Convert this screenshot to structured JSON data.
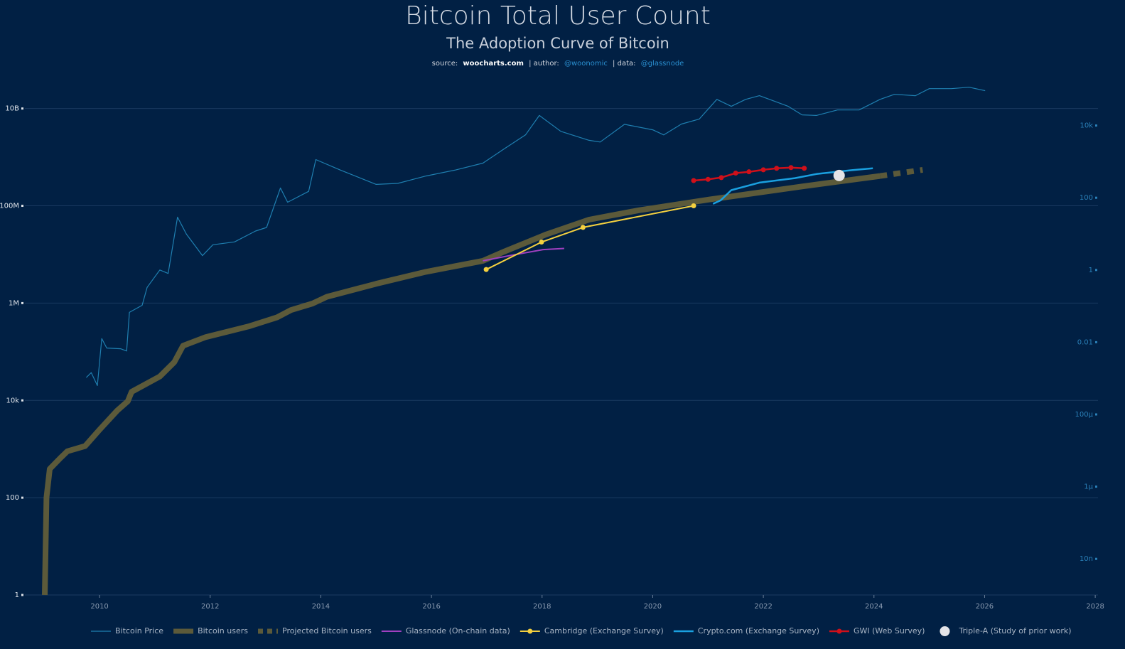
{
  "chart_data": {
    "type": "line",
    "title": "Bitcoin Total User Count",
    "subtitle": "The Adoption Curve of Bitcoin",
    "source": {
      "source_label": "source:",
      "site": "woocharts.com",
      "author_label": "| author:",
      "author": "@woonomic",
      "data_label": "| data:",
      "data": "@glassnode"
    },
    "xlim": [
      2008.65,
      2028.05
    ],
    "xticks": [
      2010,
      2012,
      2014,
      2016,
      2018,
      2020,
      2022,
      2024,
      2026,
      2028
    ],
    "ylim": [
      1,
      30000000000
    ],
    "yticks": [
      1,
      100,
      {
        "value": 10000,
        "label": "10k"
      },
      {
        "value": 1000000,
        "label": "1M"
      },
      {
        "value": 100000000,
        "label": "100M"
      },
      {
        "value": 10000000000,
        "label": "10B"
      }
    ],
    "y2lim": [
      1e-09,
      130000
    ],
    "y2ticks": [
      {
        "value": 1e-08,
        "label": "10n"
      },
      {
        "value": 1e-06,
        "label": "1μ"
      },
      {
        "value": 0.0001,
        "label": "100μ"
      },
      0.01,
      1,
      100,
      {
        "value": 10000,
        "label": "10k"
      }
    ],
    "log_scale": true,
    "grid": true,
    "legend": "bottom",
    "series": [
      {
        "name": "Bitcoin Price",
        "color": "#1f7fb0",
        "axis": "y2",
        "mode": "lines",
        "width": 1.2,
        "x": [
          2009.76,
          2009.85,
          2009.96,
          2010.04,
          2010.13,
          2010.38,
          2010.49,
          2010.54,
          2010.77,
          2010.86,
          2011.09,
          2011.24,
          2011.41,
          2011.57,
          2011.86,
          2012.05,
          2012.44,
          2012.82,
          2013.02,
          2013.27,
          2013.4,
          2013.78,
          2013.91,
          2014.36,
          2015.0,
          2015.39,
          2015.9,
          2016.42,
          2016.93,
          2017.31,
          2017.7,
          2017.95,
          2018.34,
          2018.85,
          2019.05,
          2019.49,
          2020.0,
          2020.2,
          2020.52,
          2020.84,
          2021.16,
          2021.42,
          2021.68,
          2021.93,
          2022.45,
          2022.7,
          2022.96,
          2023.34,
          2023.73,
          2024.11,
          2024.37,
          2024.75,
          2025.0,
          2025.4,
          2025.72,
          2026.01
        ],
        "values": [
          0.00105,
          0.00144,
          0.00063,
          0.0126,
          0.0069,
          0.0066,
          0.0057,
          0.067,
          0.105,
          0.33,
          1.0,
          0.8,
          29,
          9.8,
          2.5,
          5,
          6,
          12,
          15,
          186,
          75,
          150,
          1140,
          580,
          234,
          250,
          400,
          580,
          910,
          2240,
          5500,
          19000,
          6900,
          3900,
          3500,
          10800,
          7600,
          5500,
          11000,
          15000,
          53000,
          34000,
          53000,
          67000,
          34000,
          19700,
          19000,
          27000,
          27000,
          53000,
          73000,
          67000,
          105000,
          105000,
          115000,
          92000
        ]
      },
      {
        "name": "Bitcoin users",
        "color": "#5c5a3a",
        "mode": "lines",
        "width": 8,
        "x": [
          2009.01,
          2009.04,
          2009.1,
          2009.29,
          2009.42,
          2009.74,
          2010.0,
          2010.32,
          2010.51,
          2010.58,
          2011.09,
          2011.35,
          2011.51,
          2011.92,
          2012.69,
          2013.21,
          2013.46,
          2013.85,
          2014.11,
          2015.0,
          2015.9,
          2016.93,
          2017.31,
          2018.08,
          2018.85,
          2019.75,
          2021.03,
          2022.7,
          2024.11
        ],
        "values": [
          1,
          100,
          390,
          650,
          900,
          1150,
          2500,
          6200,
          9600,
          15000,
          31000,
          61000,
          133000,
          200000,
          330000,
          510000,
          720000,
          980000,
          1350000,
          2500000,
          4400000,
          7400000,
          11400000,
          26000000,
          52000000,
          81000000,
          135000000,
          250000000,
          410000000
        ]
      },
      {
        "name": "Projected Bitcoin users",
        "color": "#5c5a3a",
        "mode": "lines",
        "width": 8,
        "dash": true,
        "x": [
          2024.11,
          2024.88
        ],
        "values": [
          410000000,
          550000000
        ]
      },
      {
        "name": "Glassnode (On-chain data)",
        "color": "#a040c0",
        "mode": "lines",
        "width": 2,
        "x": [
          2016.93,
          2017.44,
          2018.02,
          2018.4
        ],
        "values": [
          7400000,
          9600000,
          12600000,
          13300000
        ]
      },
      {
        "name": "Cambridge (Exchange Survey)",
        "color": "#f4d03f",
        "mode": "lines+markers",
        "width": 2,
        "x": [
          2016.99,
          2017.99,
          2018.74,
          2020.74
        ],
        "values": [
          4900000,
          18000000,
          36000000,
          100000000
        ]
      },
      {
        "name": "Crypto.com (Exchange Survey)",
        "color": "#1aa0e0",
        "mode": "lines",
        "width": 2.5,
        "x": [
          2021.09,
          2021.23,
          2021.42,
          2021.93,
          2022.57,
          2022.96,
          2023.6,
          2023.98
        ],
        "values": [
          110000000,
          130000000,
          210000000,
          300000000,
          370000000,
          450000000,
          540000000,
          590000000
        ]
      },
      {
        "name": "GWI (Web Survey)",
        "color": "#d0101a",
        "mode": "lines+markers",
        "width": 2.5,
        "x": [
          2020.74,
          2021.0,
          2021.24,
          2021.5,
          2021.74,
          2022.0,
          2022.24,
          2022.5,
          2022.74
        ],
        "values": [
          330000000,
          350000000,
          380000000,
          470000000,
          500000000,
          550000000,
          590000000,
          610000000,
          590000000
        ]
      },
      {
        "name": "Triple-A (Study of prior work)",
        "color": "#e4e4e8",
        "mode": "markers",
        "width": 0,
        "x": [
          2023.37
        ],
        "values": [
          420000000
        ]
      }
    ]
  }
}
